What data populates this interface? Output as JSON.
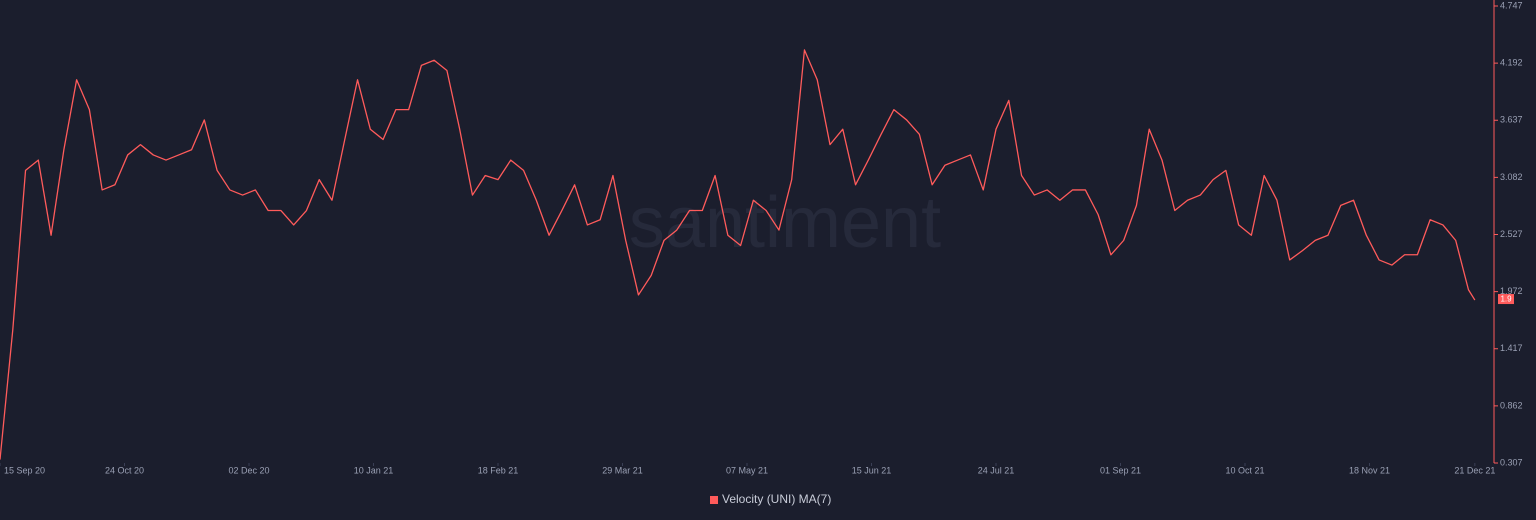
{
  "chart_data": {
    "type": "line",
    "watermark": "santiment",
    "x": [
      "2020-09-15",
      "2020-09-19",
      "2020-09-23",
      "2020-09-27",
      "2020-10-01",
      "2020-10-05",
      "2020-10-09",
      "2020-10-13",
      "2020-10-17",
      "2020-10-21",
      "2020-10-25",
      "2020-10-29",
      "2020-11-02",
      "2020-11-06",
      "2020-11-10",
      "2020-11-14",
      "2020-11-18",
      "2020-11-22",
      "2020-11-26",
      "2020-11-30",
      "2020-12-04",
      "2020-12-08",
      "2020-12-12",
      "2020-12-16",
      "2020-12-20",
      "2020-12-24",
      "2020-12-28",
      "2021-01-01",
      "2021-01-05",
      "2021-01-09",
      "2021-01-13",
      "2021-01-17",
      "2021-01-21",
      "2021-01-25",
      "2021-01-29",
      "2021-02-02",
      "2021-02-06",
      "2021-02-10",
      "2021-02-14",
      "2021-02-18",
      "2021-02-22",
      "2021-02-26",
      "2021-03-02",
      "2021-03-06",
      "2021-03-10",
      "2021-03-14",
      "2021-03-18",
      "2021-03-22",
      "2021-03-26",
      "2021-03-30",
      "2021-04-03",
      "2021-04-07",
      "2021-04-11",
      "2021-04-15",
      "2021-04-19",
      "2021-04-23",
      "2021-04-27",
      "2021-05-01",
      "2021-05-05",
      "2021-05-09",
      "2021-05-13",
      "2021-05-17",
      "2021-05-21",
      "2021-05-25",
      "2021-05-29",
      "2021-06-02",
      "2021-06-06",
      "2021-06-10",
      "2021-06-14",
      "2021-06-18",
      "2021-06-22",
      "2021-06-26",
      "2021-06-30",
      "2021-07-04",
      "2021-07-08",
      "2021-07-12",
      "2021-07-16",
      "2021-07-20",
      "2021-07-24",
      "2021-07-28",
      "2021-08-01",
      "2021-08-05",
      "2021-08-09",
      "2021-08-13",
      "2021-08-17",
      "2021-08-21",
      "2021-08-25",
      "2021-08-29",
      "2021-09-02",
      "2021-09-06",
      "2021-09-10",
      "2021-09-14",
      "2021-09-18",
      "2021-09-22",
      "2021-09-26",
      "2021-09-30",
      "2021-10-04",
      "2021-10-08",
      "2021-10-12",
      "2021-10-16",
      "2021-10-20",
      "2021-10-24",
      "2021-10-28",
      "2021-11-01",
      "2021-11-05",
      "2021-11-09",
      "2021-11-13",
      "2021-11-17",
      "2021-11-21",
      "2021-11-25",
      "2021-11-29",
      "2021-12-03",
      "2021-12-07",
      "2021-12-11",
      "2021-12-15",
      "2021-12-19",
      "2021-12-21"
    ],
    "series": [
      {
        "name": "Velocity (UNI) MA(7)",
        "color": "#ff5b5b",
        "values": [
          0.34,
          1.6,
          3.15,
          3.25,
          2.52,
          3.35,
          4.03,
          3.74,
          2.96,
          3.01,
          3.3,
          3.4,
          3.3,
          3.25,
          3.3,
          3.35,
          3.64,
          3.15,
          2.96,
          2.91,
          2.96,
          2.76,
          2.76,
          2.62,
          2.76,
          3.06,
          2.86,
          3.45,
          4.03,
          3.55,
          3.45,
          3.74,
          3.74,
          4.17,
          4.22,
          4.12,
          3.55,
          2.91,
          3.1,
          3.06,
          3.25,
          3.15,
          2.86,
          2.52,
          2.76,
          3.01,
          2.62,
          2.67,
          3.1,
          2.47,
          1.94,
          2.13,
          2.47,
          2.57,
          2.76,
          2.76,
          3.1,
          2.52,
          2.42,
          2.86,
          2.76,
          2.57,
          3.06,
          4.32,
          4.03,
          3.4,
          3.55,
          3.01,
          3.25,
          3.5,
          3.74,
          3.64,
          3.5,
          3.01,
          3.2,
          3.25,
          3.3,
          2.96,
          3.55,
          3.83,
          3.1,
          2.91,
          2.96,
          2.86,
          2.96,
          2.96,
          2.72,
          2.33,
          2.47,
          2.81,
          3.55,
          3.25,
          2.76,
          2.86,
          2.91,
          3.06,
          3.15,
          2.62,
          2.52,
          3.1,
          2.86,
          2.28,
          2.37,
          2.47,
          2.52,
          2.81,
          2.86,
          2.52,
          2.28,
          2.23,
          2.33,
          2.33,
          2.67,
          2.62,
          2.47,
          1.99,
          1.89
        ]
      }
    ],
    "current_value": 1.9,
    "xlim": [
      "2020-09-15",
      "2021-12-27"
    ],
    "xticks": [
      {
        "value": "2020-09-15",
        "label": "15 Sep 20"
      },
      {
        "value": "2020-10-24",
        "label": "24 Oct 20"
      },
      {
        "value": "2020-12-02",
        "label": "02 Dec 20"
      },
      {
        "value": "2021-01-10",
        "label": "10 Jan 21"
      },
      {
        "value": "2021-02-18",
        "label": "18 Feb 21"
      },
      {
        "value": "2021-03-29",
        "label": "29 Mar 21"
      },
      {
        "value": "2021-05-07",
        "label": "07 May 21"
      },
      {
        "value": "2021-06-15",
        "label": "15 Jun 21"
      },
      {
        "value": "2021-07-24",
        "label": "24 Jul 21"
      },
      {
        "value": "2021-09-01",
        "label": "01 Sep 21"
      },
      {
        "value": "2021-10-10",
        "label": "10 Oct 21"
      },
      {
        "value": "2021-11-18",
        "label": "18 Nov 21"
      },
      {
        "value": "2021-12-21",
        "label": "21 Dec 21"
      }
    ],
    "ylim": [
      0.307,
      4.747
    ],
    "yticks": [
      0.307,
      0.862,
      1.417,
      1.972,
      2.527,
      3.082,
      3.637,
      4.192,
      4.747
    ],
    "grid": false
  }
}
